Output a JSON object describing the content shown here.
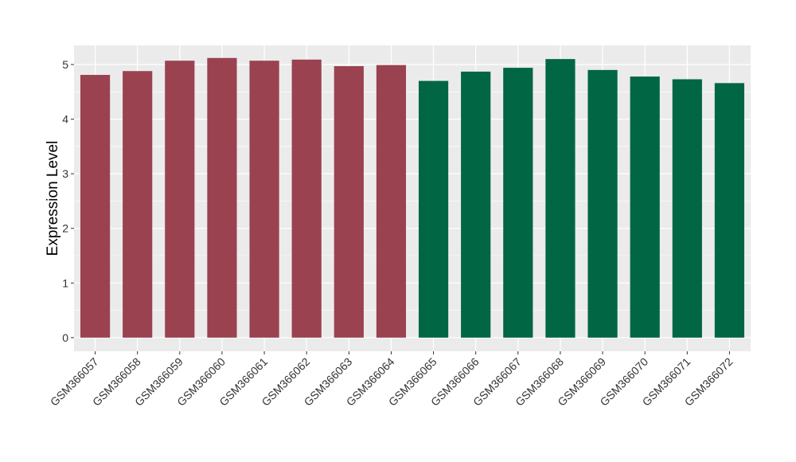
{
  "chart_data": {
    "type": "bar",
    "title": "",
    "xlabel": "",
    "ylabel": "Expression Level",
    "ylim": [
      -0.25,
      5.35
    ],
    "yticks": [
      0,
      1,
      2,
      3,
      4,
      5
    ],
    "grid": true,
    "legend": "none",
    "colors": {
      "group1": "#9A4250",
      "group2": "#006644",
      "panel": "#EBEBEB",
      "grid": "#FFFFFF"
    },
    "categories": [
      "GSM366057",
      "GSM366058",
      "GSM366059",
      "GSM366060",
      "GSM366061",
      "GSM366062",
      "GSM366063",
      "GSM366064",
      "GSM366065",
      "GSM366066",
      "GSM366067",
      "GSM366068",
      "GSM366069",
      "GSM366070",
      "GSM366071",
      "GSM366072"
    ],
    "values": [
      4.81,
      4.88,
      5.07,
      5.12,
      5.07,
      5.09,
      4.97,
      4.99,
      4.7,
      4.87,
      4.94,
      5.1,
      4.9,
      4.78,
      4.73,
      4.66
    ],
    "groups": [
      "group1",
      "group1",
      "group1",
      "group1",
      "group1",
      "group1",
      "group1",
      "group1",
      "group2",
      "group2",
      "group2",
      "group2",
      "group2",
      "group2",
      "group2",
      "group2"
    ]
  }
}
